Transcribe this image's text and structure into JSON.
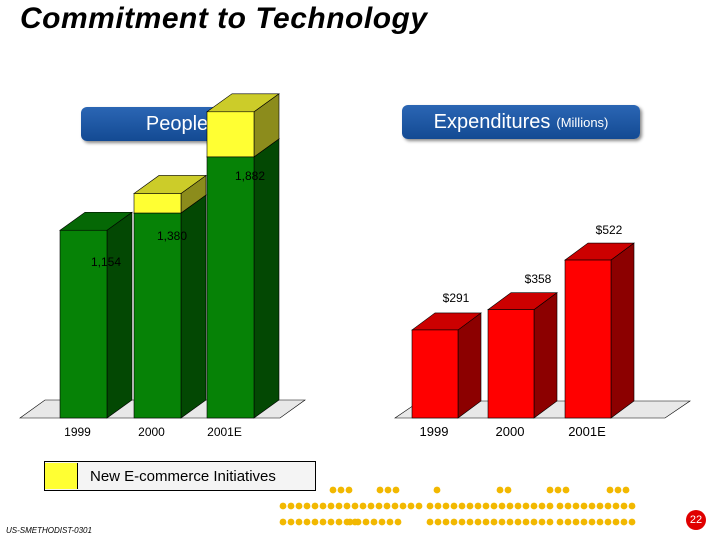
{
  "title": "Commitment to Technology",
  "chart_data": [
    {
      "type": "bar",
      "title": "People",
      "categories": [
        "1999",
        "2000",
        "2001E"
      ],
      "series": [
        {
          "values": [
            1154,
            1260,
            1605
          ]
        },
        {
          "name": "New E-commerce Initiatives",
          "values": [
            0,
            120,
            277
          ]
        }
      ],
      "data_labels": [
        "1,154",
        "1,380",
        "1,882"
      ],
      "ylim": [
        0,
        2000
      ],
      "grid": false,
      "colors": {
        "base": "#068206",
        "initiative": "#ffff33"
      }
    },
    {
      "type": "bar",
      "title": "Expenditures",
      "title_unit": "(Millions)",
      "categories": [
        "1999",
        "2000",
        "2001E"
      ],
      "values": [
        291,
        358,
        522
      ],
      "data_labels": [
        "$291",
        "$358",
        "$522"
      ],
      "ylim": [
        0,
        600
      ],
      "grid": false,
      "colors": {
        "bar": "#ff0000"
      }
    }
  ],
  "legend": {
    "label": "New E-commerce Initiatives",
    "color": "#ffff33"
  },
  "footer": {
    "code": "US-SMETHODIST-0301",
    "page": "22"
  },
  "decor": {
    "dots_color": "#f2b800"
  }
}
